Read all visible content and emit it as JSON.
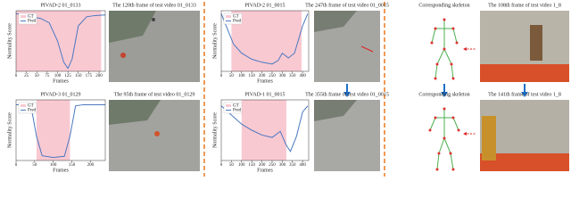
{
  "chart_data": [
    {
      "type": "line",
      "title": "PIVAD-2  01_0133",
      "xlabel": "Frames",
      "ylabel": "Normality Score",
      "x": [
        0,
        20,
        40,
        60,
        80,
        100,
        115,
        125,
        135,
        150,
        170,
        190,
        215
      ],
      "gt": {
        "name": "GT",
        "color": "#f9c9d2",
        "range": [
          0,
          205
        ]
      },
      "series": [
        {
          "name": "Pred",
          "color": "#4a78c0",
          "values": [
            0.95,
            0.93,
            0.9,
            0.87,
            0.8,
            0.5,
            0.15,
            0.05,
            0.2,
            0.75,
            0.9,
            0.92,
            0.93
          ]
        }
      ],
      "xlim": [
        0,
        215
      ],
      "xticks": [
        0,
        25,
        50,
        75,
        100,
        125,
        150,
        175,
        200
      ],
      "ylim": [
        0,
        1
      ]
    },
    {
      "type": "line",
      "title": "PIVAD-3  01_0129",
      "xlabel": "Frames",
      "ylabel": "Normality Score",
      "x": [
        0,
        20,
        40,
        55,
        70,
        100,
        130,
        145,
        160,
        180,
        210,
        240
      ],
      "gt": {
        "name": "GT",
        "color": "#f9c9d2",
        "range": [
          55,
          145
        ]
      },
      "series": [
        {
          "name": "Pred",
          "color": "#4a78c0",
          "values": [
            0.92,
            0.92,
            0.9,
            0.4,
            0.08,
            0.05,
            0.07,
            0.4,
            0.9,
            0.92,
            0.92,
            0.92
          ]
        }
      ],
      "xlim": [
        0,
        240
      ],
      "xticks": [
        0,
        50,
        100,
        150,
        200
      ],
      "ylim": [
        0,
        1
      ]
    },
    {
      "type": "line",
      "title": "PIVAD-2  01_0015",
      "xlabel": "Frames",
      "ylabel": "Normality Score",
      "x": [
        0,
        30,
        60,
        100,
        150,
        200,
        250,
        280,
        300,
        330,
        360,
        400,
        425
      ],
      "gt": {
        "name": "GT",
        "color": "#f9c9d2",
        "range": [
          50,
          395
        ]
      },
      "series": [
        {
          "name": "Pred",
          "color": "#4a78c0",
          "values": [
            0.95,
            0.7,
            0.45,
            0.3,
            0.2,
            0.15,
            0.12,
            0.18,
            0.3,
            0.22,
            0.3,
            0.75,
            0.95
          ]
        }
      ],
      "xlim": [
        0,
        430
      ],
      "xticks": [
        0,
        50,
        100,
        150,
        200,
        250,
        300,
        350,
        400
      ],
      "ylim": [
        0,
        1
      ]
    },
    {
      "type": "line",
      "title": "PIVAD-1  01_0015",
      "xlabel": "Frames",
      "ylabel": "Normality Score",
      "x": [
        0,
        50,
        100,
        150,
        200,
        250,
        290,
        320,
        340,
        370,
        400,
        425
      ],
      "gt": {
        "name": "GT",
        "color": "#f9c9d2",
        "range": [
          100,
          320
        ]
      },
      "series": [
        {
          "name": "Pred",
          "color": "#4a78c0",
          "values": [
            0.9,
            0.75,
            0.6,
            0.5,
            0.42,
            0.38,
            0.48,
            0.25,
            0.15,
            0.4,
            0.8,
            0.9
          ]
        }
      ],
      "xlim": [
        0,
        430
      ],
      "xticks": [
        0,
        50,
        100,
        150,
        200,
        250,
        300,
        350,
        400
      ],
      "ylim": [
        0,
        1
      ]
    }
  ],
  "captions": [
    "The 120th frame of test video 01_0133",
    "The 95th frame of test video 01_0129",
    "The 247th frame of test video 01_0015",
    "The 355th frame of test video 01_0015",
    "Corresponding skeleton",
    "The 108th frame of test video 1_8",
    "Corresponding skeleton",
    "The 141th frame of test video 1_8"
  ]
}
